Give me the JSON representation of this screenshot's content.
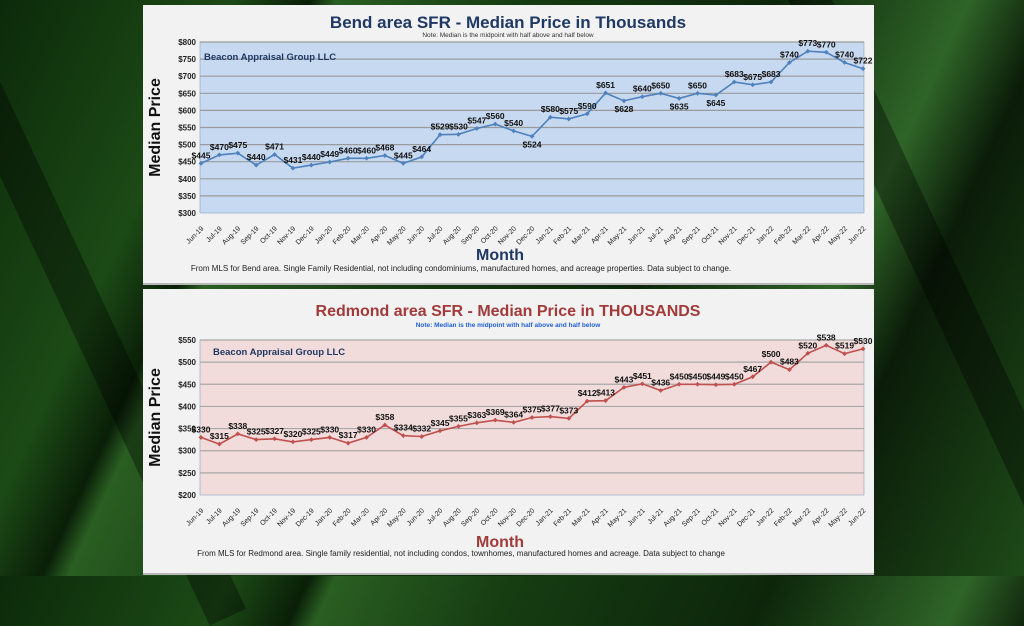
{
  "chart_data": [
    {
      "type": "line",
      "id": "bend",
      "title": "Bend area SFR - Median Price in Thousands",
      "subtitle": "Note: Median is the midpoint with half above and half below",
      "watermark": "Beacon Appraisal Group LLC",
      "xlabel": "Month",
      "ylabel": "Median Price",
      "footer": "From MLS for Bend area.  Single Family Residential, not including condominiums, manufactured homes, and acreage properties.  Data subject to change.",
      "ylim": [
        300,
        800
      ],
      "ytick_step": 50,
      "ytick_prefix": "$",
      "grid": true,
      "legend": "none",
      "colors": {
        "title": "#1f3864",
        "line": "#4f81bd",
        "plot_bg": "#c6d9f1",
        "grid": "#9a9a9a",
        "axis_title": "#1f3864",
        "ylabel": "#111111",
        "note": "#333333",
        "brand": "#1f3864"
      },
      "categories": [
        "Jun-19",
        "Jul-19",
        "Aug-19",
        "Sep-19",
        "Oct-19",
        "Nov-19",
        "Dec-19",
        "Jan-20",
        "Feb-20",
        "Mar-20",
        "Apr-20",
        "May-20",
        "Jun-20",
        "Jul-20",
        "Aug-20",
        "Sep-20",
        "Oct-20",
        "Nov-20",
        "Dec-20",
        "Jan-21",
        "Feb-21",
        "Mar-21",
        "Apr-21",
        "May-21",
        "Jun-21",
        "Jul-21",
        "Aug-21",
        "Sep-21",
        "Oct-21",
        "Nov-21",
        "Dec-21",
        "Jan-22",
        "Feb-22",
        "Mar-22",
        "Apr-22",
        "May-22",
        "Jun-22"
      ],
      "series": [
        {
          "name": "Median Price",
          "values": [
            445,
            470,
            475,
            440,
            471,
            431,
            440,
            449,
            460,
            460,
            468,
            445,
            464,
            529,
            530,
            547,
            560,
            540,
            524,
            580,
            575,
            590,
            651,
            628,
            640,
            650,
            635,
            650,
            645,
            683,
            675,
            683,
            740,
            773,
            770,
            740,
            722
          ]
        }
      ],
      "data_label_prefix": "$"
    },
    {
      "type": "line",
      "id": "redmond",
      "title": "Redmond area SFR - Median Price in THOUSANDS",
      "subtitle": "Note:  Median is the midpoint with half above and half below",
      "watermark": "Beacon Appraisal Group LLC",
      "xlabel": "Month",
      "ylabel": "Median Price",
      "footer": "From MLS for Redmond area. Single family residential, not including condos, townhomes, manufactured homes and acreage.  Data subject to change",
      "ylim": [
        200,
        550
      ],
      "ytick_step": 50,
      "ytick_prefix": "$",
      "grid": true,
      "legend": "none",
      "colors": {
        "title": "#a33a3a",
        "line": "#c0504d",
        "plot_bg": "#f2dcdb",
        "grid": "#a8a8a8",
        "axis_title": "#a33a3a",
        "ylabel": "#111111",
        "note": "#1f5fd6",
        "brand": "#1f3864"
      },
      "categories": [
        "Jun-19",
        "Jul-19",
        "Aug-19",
        "Sep-19",
        "Oct-19",
        "Nov-19",
        "Dec-19",
        "Jan-20",
        "Feb-20",
        "Mar-20",
        "Apr-20",
        "May-20",
        "Jun-20",
        "Jul-20",
        "Aug-20",
        "Sep-20",
        "Oct-20",
        "Nov-20",
        "Dec-20",
        "Jan-21",
        "Feb-21",
        "Mar-21",
        "Apr-21",
        "May-21",
        "Jun-21",
        "Jul-21",
        "Aug-21",
        "Sep-21",
        "Oct-21",
        "Nov-21",
        "Dec-21",
        "Jan-22",
        "Feb-22",
        "Mar-22",
        "Apr-22",
        "May-22",
        "Jun-22"
      ],
      "series": [
        {
          "name": "Median Price",
          "values": [
            330,
            315,
            338,
            325,
            327,
            320,
            325,
            330,
            317,
            330,
            358,
            334,
            332,
            345,
            355,
            363,
            369,
            364,
            375,
            377,
            373,
            412,
            413,
            443,
            451,
            436,
            450,
            450,
            449,
            450,
            467,
            500,
            483,
            520,
            538,
            519,
            530
          ]
        }
      ],
      "data_label_prefix": "$"
    }
  ]
}
